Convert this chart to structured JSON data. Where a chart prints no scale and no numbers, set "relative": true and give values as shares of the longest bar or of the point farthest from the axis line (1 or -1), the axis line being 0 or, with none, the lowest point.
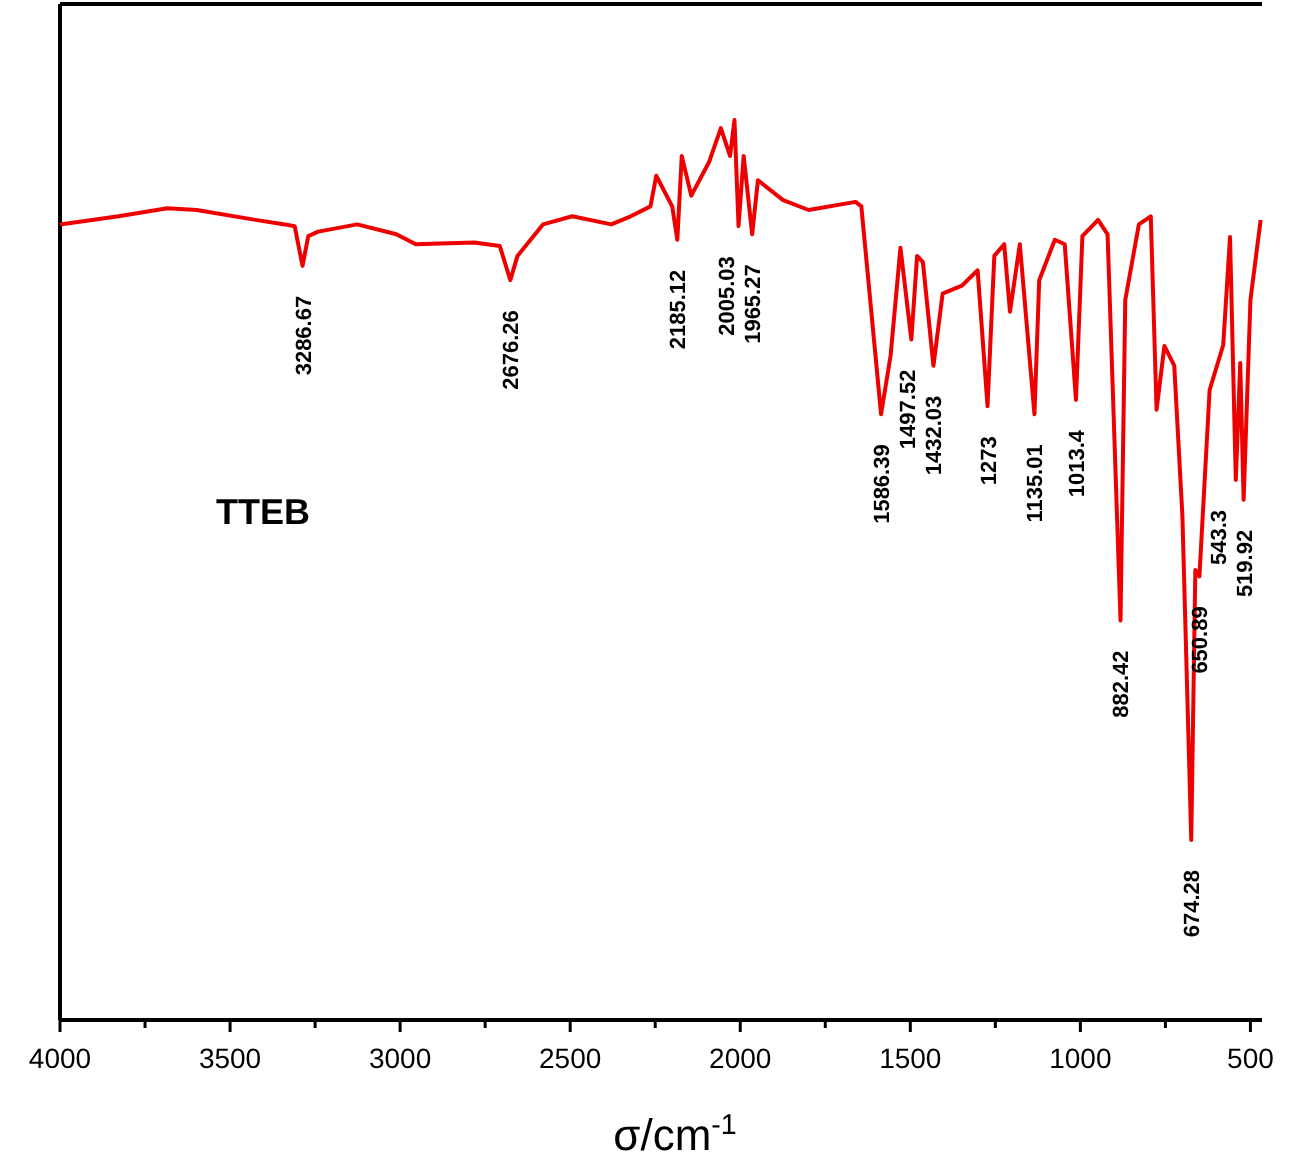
{
  "chart_data": {
    "type": "line",
    "relative": true,
    "xlabel": "σ/cm$^{-1}$",
    "xlim": [
      4000,
      466
    ],
    "xticks": [
      4000,
      {
        "value": 3750,
        "label": null
      },
      3500,
      {
        "value": 3250,
        "label": null
      },
      3000,
      {
        "value": 2750,
        "label": null
      },
      2500,
      {
        "value": 2250,
        "label": null
      },
      2000,
      {
        "value": 1750,
        "label": null
      },
      1500,
      {
        "value": 1250,
        "label": null
      },
      1000,
      {
        "value": 750,
        "label": null
      },
      500
    ],
    "series": [
      {
        "name": "TTEB",
        "color": "#ee0000",
        "x": [
          4000,
          3828,
          3684,
          3598,
          3425,
          3339,
          3310,
          3287,
          3270,
          3241,
          3126,
          3011,
          2954,
          2782,
          2707,
          2676,
          2655,
          2580,
          2494,
          2379,
          2322,
          2264,
          2247,
          2200,
          2185,
          2172,
          2144,
          2092,
          2057,
          2030,
          2017,
          2005,
          1990,
          1965,
          1948,
          1874,
          1799,
          1661,
          1644,
          1586,
          1558,
          1529,
          1497,
          1480,
          1463,
          1432,
          1405,
          1348,
          1302,
          1273,
          1253,
          1224,
          1207,
          1178,
          1135,
          1121,
          1075,
          1046,
          1013,
          994,
          948,
          920,
          882,
          868,
          828,
          793,
          776,
          753,
          724,
          700,
          674,
          662,
          650,
          620,
          580,
          560,
          543,
          530,
          520,
          500,
          470
        ],
        "values": [
          0.884,
          0.893,
          0.902,
          0.9,
          0.889,
          0.884,
          0.882,
          0.838,
          0.871,
          0.876,
          0.884,
          0.873,
          0.862,
          0.864,
          0.86,
          0.822,
          0.849,
          0.884,
          0.893,
          0.884,
          0.893,
          0.904,
          0.938,
          0.904,
          0.867,
          0.96,
          0.916,
          0.953,
          0.991,
          0.96,
          1.0,
          0.882,
          0.96,
          0.873,
          0.933,
          0.911,
          0.9,
          0.909,
          0.904,
          0.673,
          0.738,
          0.858,
          0.756,
          0.849,
          0.842,
          0.727,
          0.807,
          0.816,
          0.833,
          0.682,
          0.849,
          0.862,
          0.787,
          0.862,
          0.673,
          0.822,
          0.867,
          0.862,
          0.689,
          0.871,
          0.889,
          0.873,
          0.444,
          0.8,
          0.884,
          0.893,
          0.678,
          0.749,
          0.727,
          0.56,
          0.2,
          0.5,
          0.493,
          0.7,
          0.75,
          0.87,
          0.6,
          0.73,
          0.578,
          0.8,
          0.889
        ]
      }
    ],
    "annotations": [
      {
        "text": "3286.67",
        "x": 3286.67,
        "y": 0.838
      },
      {
        "text": "2676.26",
        "x": 2676.26,
        "y": 0.822
      },
      {
        "text": "2185.12",
        "x": 2185.12,
        "y": 0.867
      },
      {
        "text": "2005.03",
        "x": 2005.03,
        "y": 0.882
      },
      {
        "text": "1965.27",
        "x": 1965.27,
        "y": 0.873
      },
      {
        "text": "1586.39",
        "x": 1586.39,
        "y": 0.673
      },
      {
        "text": "1497.52",
        "x": 1497.52,
        "y": 0.756
      },
      {
        "text": "1432.03",
        "x": 1432.03,
        "y": 0.727
      },
      {
        "text": "1273",
        "x": 1273,
        "y": 0.682
      },
      {
        "text": "1135.01",
        "x": 1135.01,
        "y": 0.673
      },
      {
        "text": "1013.4",
        "x": 1013.4,
        "y": 0.689
      },
      {
        "text": "882.42",
        "x": 882.42,
        "y": 0.444
      },
      {
        "text": "674.28",
        "x": 674.28,
        "y": 0.2
      },
      {
        "text": "650.89",
        "x": 650.89,
        "y": 0.493
      },
      {
        "text": "543.3",
        "x": 543.3,
        "y": 0.6
      },
      {
        "text": "519.92",
        "x": 519.92,
        "y": 0.578
      }
    ]
  }
}
